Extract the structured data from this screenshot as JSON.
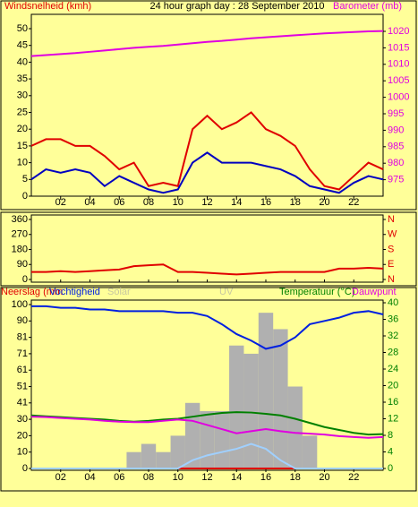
{
  "chart_data": [
    {
      "type": "line",
      "title": "24 hour graph day : 28 September 2010",
      "x": [
        0,
        1,
        2,
        3,
        4,
        5,
        6,
        7,
        8,
        9,
        10,
        11,
        12,
        13,
        14,
        15,
        16,
        17,
        18,
        19,
        20,
        21,
        22,
        23,
        24
      ],
      "xlim": [
        0,
        24
      ],
      "xticks": [
        {
          "value": 2,
          "label": "02"
        },
        {
          "value": 4,
          "label": "04"
        },
        {
          "value": 6,
          "label": "06"
        },
        {
          "value": 8,
          "label": "08"
        },
        10,
        12,
        14,
        16,
        18,
        20,
        22
      ],
      "ylim": [
        0,
        50
      ],
      "yticks": [
        0,
        5,
        10,
        15,
        20,
        25,
        30,
        35,
        40,
        45,
        50
      ],
      "y2lim": [
        970,
        1020
      ],
      "y2ticks": [
        975,
        980,
        985,
        990,
        995,
        1000,
        1005,
        1010,
        1015,
        1020
      ],
      "series": [
        {
          "name": "Windsnelheid (kmh)",
          "color": "#e00000",
          "values": [
            15,
            17,
            17,
            15,
            15,
            12,
            8,
            10,
            3,
            4,
            3,
            20,
            24,
            20,
            22,
            25,
            20,
            18,
            15,
            8,
            3,
            2,
            6,
            10,
            8
          ]
        },
        {
          "color": "#0000c0",
          "values": [
            5,
            8,
            7,
            8,
            7,
            3,
            6,
            4,
            2,
            1,
            2,
            10,
            13,
            10,
            10,
            10,
            9,
            8,
            6,
            3,
            2,
            1,
            4,
            6,
            5
          ]
        },
        {
          "name": "Barometer (mb)",
          "color": "#e000e0",
          "axis": "y2",
          "values": [
            1012.5,
            1012.8,
            1013.1,
            1013.4,
            1013.8,
            1014.2,
            1014.6,
            1015.0,
            1015.3,
            1015.6,
            1016.0,
            1016.4,
            1016.8,
            1017.1,
            1017.5,
            1017.9,
            1018.2,
            1018.5,
            1018.8,
            1019.1,
            1019.4,
            1019.6,
            1019.8,
            1020.0,
            1020.1
          ]
        }
      ]
    },
    {
      "type": "line",
      "x": [
        0,
        1,
        2,
        3,
        4,
        5,
        6,
        7,
        8,
        9,
        10,
        11,
        12,
        13,
        14,
        15,
        16,
        17,
        18,
        19,
        20,
        21,
        22,
        23,
        24
      ],
      "xlim": [
        0,
        24
      ],
      "ylim": [
        0,
        360
      ],
      "yticks": [
        0,
        90,
        180,
        270,
        360
      ],
      "y2lim": [
        0,
        360
      ],
      "y2ticks": [
        {
          "value": 0,
          "label": "N"
        },
        {
          "value": 90,
          "label": "E"
        },
        {
          "value": 180,
          "label": "S"
        },
        {
          "value": 270,
          "label": "W"
        },
        {
          "value": 360,
          "label": "N"
        }
      ],
      "series": [
        {
          "color": "#e00000",
          "values": [
            45,
            45,
            50,
            45,
            50,
            55,
            60,
            80,
            85,
            90,
            45,
            45,
            40,
            35,
            30,
            35,
            40,
            45,
            45,
            45,
            45,
            65,
            65,
            70,
            65
          ]
        }
      ]
    },
    {
      "type": "line",
      "x": [
        0,
        1,
        2,
        3,
        4,
        5,
        6,
        7,
        8,
        9,
        10,
        11,
        12,
        13,
        14,
        15,
        16,
        17,
        18,
        19,
        20,
        21,
        22,
        23,
        24
      ],
      "xlim": [
        0,
        24
      ],
      "xticks": [
        {
          "value": 2,
          "label": "02"
        },
        {
          "value": 4,
          "label": "04"
        },
        {
          "value": 6,
          "label": "06"
        },
        {
          "value": 8,
          "label": "08"
        },
        10,
        12,
        14,
        16,
        18,
        20,
        22
      ],
      "ylim": [
        0,
        100
      ],
      "yticks": [
        0,
        10,
        20,
        30,
        {
          "value": 40,
          "label": "41"
        },
        {
          "value": 50,
          "label": "51"
        },
        {
          "value": 60,
          "label": "61"
        },
        {
          "value": 70,
          "label": "71"
        },
        {
          "value": 80,
          "label": "81"
        },
        90,
        100
      ],
      "y2lim": [
        0,
        40
      ],
      "y2ticks": [
        0,
        4,
        8,
        12,
        16,
        20,
        24,
        28,
        32,
        36,
        40
      ],
      "series": [
        {
          "name": "Neerslag (mm",
          "color": "#e00000",
          "values": [
            0,
            0,
            0,
            0,
            0,
            0,
            0,
            0,
            0,
            0,
            0,
            0,
            0,
            0,
            0,
            0,
            0,
            0,
            0,
            0,
            0,
            0,
            0,
            0,
            0
          ]
        },
        {
          "name": "Vochtigheid",
          "color": "#0020e0",
          "values": [
            99,
            99,
            98,
            98,
            97,
            97,
            96,
            96,
            96,
            96,
            95,
            95,
            93,
            88,
            82,
            78,
            73,
            75,
            80,
            88,
            90,
            92,
            95,
            96,
            94
          ]
        },
        {
          "name": "Solar",
          "color": "#b0b0b0",
          "kind": "bar",
          "values": [
            0,
            0,
            0,
            0,
            0,
            0,
            0,
            10,
            15,
            10,
            20,
            40,
            35,
            35,
            75,
            70,
            95,
            85,
            50,
            20,
            0,
            0,
            0,
            0,
            0
          ]
        },
        {
          "name": "UV",
          "color": "#a0d0ff",
          "values": [
            0,
            0,
            0,
            0,
            0,
            0,
            0,
            0,
            0,
            0,
            0,
            5,
            8,
            10,
            12,
            15,
            12,
            5,
            0,
            0,
            0,
            0,
            0,
            0,
            0
          ]
        },
        {
          "name": "Temperatuur (°C)",
          "color": "#008000",
          "axis": "y2",
          "values": [
            12.8,
            12.6,
            12.4,
            12.2,
            12,
            11.8,
            11.5,
            11.3,
            11.5,
            11.8,
            12,
            12.5,
            13,
            13.4,
            13.6,
            13.5,
            13.2,
            12.8,
            12,
            11,
            10,
            9.3,
            8.6,
            8.2,
            8.3
          ]
        },
        {
          "name": "Dauwpunt",
          "color": "#e000e0",
          "axis": "y2",
          "values": [
            12.5,
            12.4,
            12.2,
            12,
            11.8,
            11.5,
            11.3,
            11.2,
            11.2,
            11.5,
            11.8,
            11.5,
            10.5,
            9.5,
            8.5,
            9,
            9.5,
            9,
            8.6,
            8.4,
            8.2,
            7.8,
            7.6,
            7.4,
            7.6
          ]
        }
      ]
    }
  ]
}
